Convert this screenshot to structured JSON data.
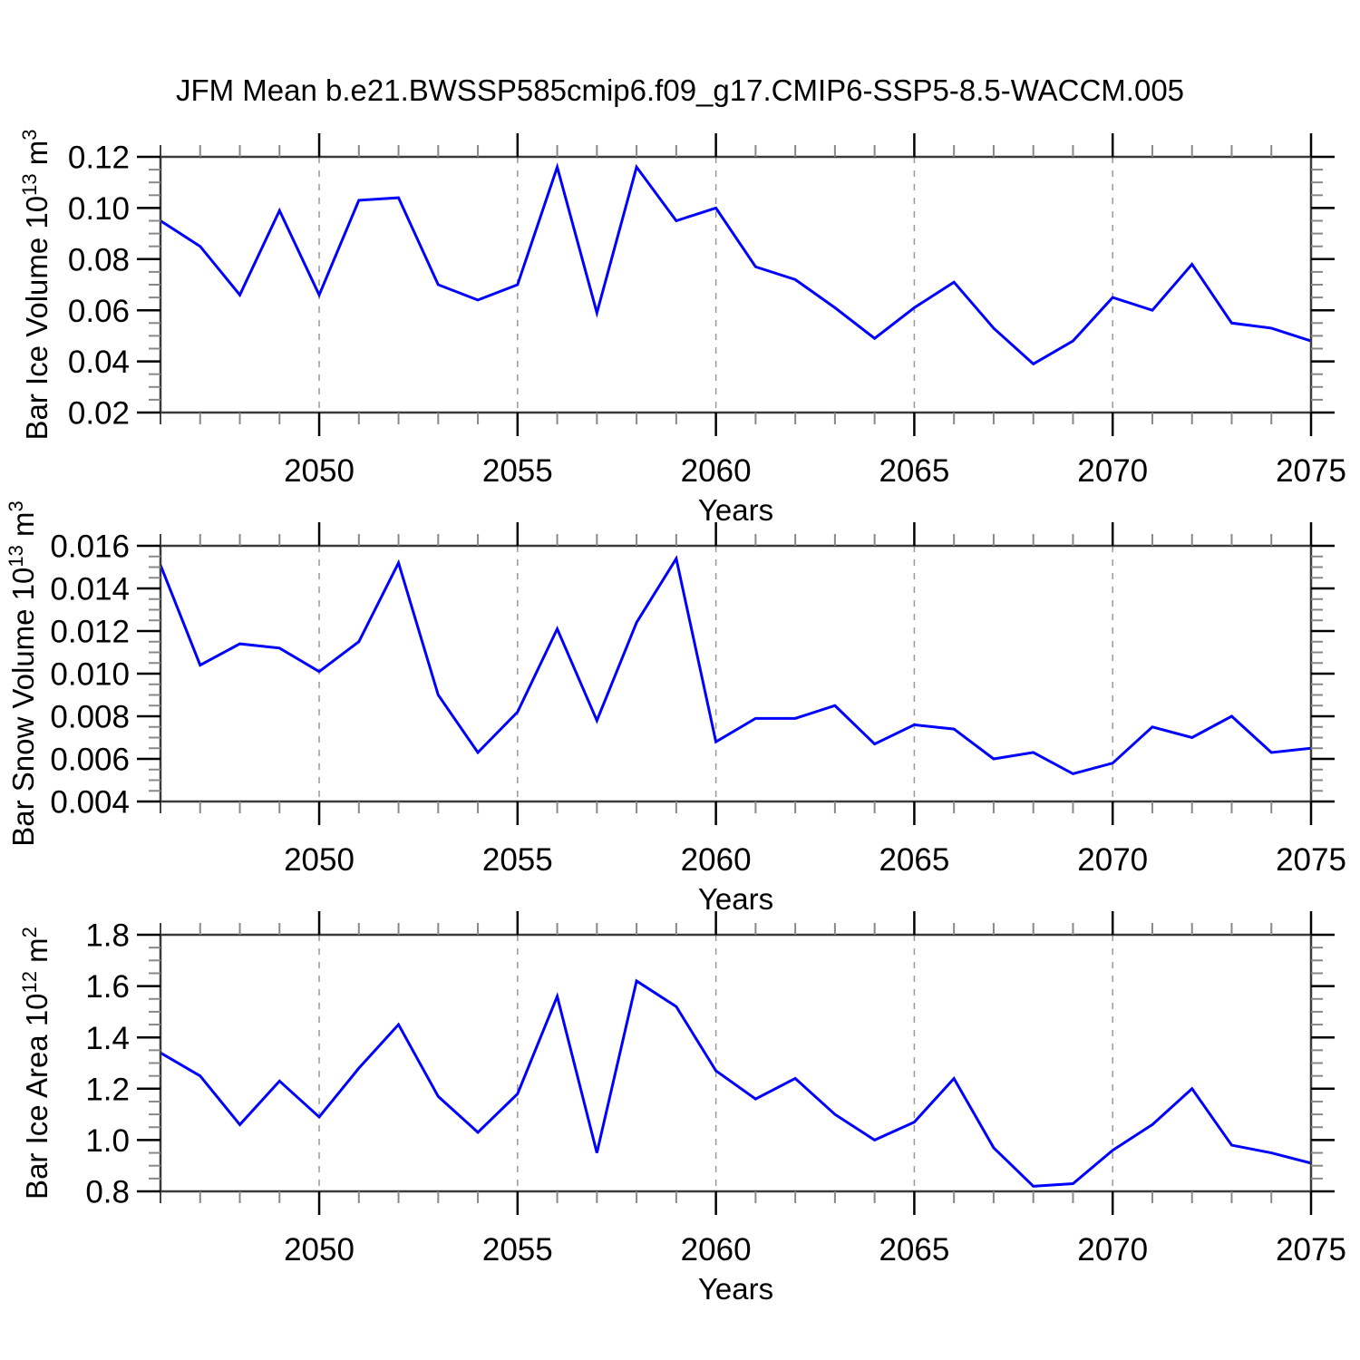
{
  "title": "JFM Mean b.e21.BWSSP585cmip6.f09_g17.CMIP6-SSP5-8.5-WACCM.005",
  "colors": {
    "line": "#0000ff",
    "axis": "#3a3a3a",
    "major_tick": "#000000",
    "minor_tick": "#888888",
    "edge_tick": "#444444",
    "grid": "#999999",
    "text": "#000000",
    "background": "#ffffff"
  },
  "chart_data": [
    {
      "type": "line",
      "panel": "bar-ice-volume",
      "ylabel": "Bar Ice Volume 10¹³ m³",
      "ylabel_parts": [
        {
          "text": "Bar Ice Volume 10",
          "superscript": false
        },
        {
          "text": "13",
          "superscript": true
        },
        {
          "text": " m",
          "superscript": false
        },
        {
          "text": "3",
          "superscript": true
        }
      ],
      "xlabel": "Years",
      "xlim": [
        2046,
        2075
      ],
      "x_tick_labels": [
        "2050",
        "2055",
        "2060",
        "2065",
        "2070",
        "2075"
      ],
      "grid_x": [
        2050,
        2055,
        2060,
        2065,
        2070
      ],
      "ylim": [
        0.02,
        0.12
      ],
      "ytick_step": 0.02,
      "yminor_step": 0.005,
      "ytick_decimals": 2,
      "x": [
        2046,
        2047,
        2048,
        2049,
        2050,
        2051,
        2052,
        2053,
        2054,
        2055,
        2056,
        2057,
        2058,
        2059,
        2060,
        2061,
        2062,
        2063,
        2064,
        2065,
        2066,
        2067,
        2068,
        2069,
        2070,
        2071,
        2072,
        2073,
        2074,
        2075
      ],
      "values": [
        0.095,
        0.085,
        0.066,
        0.099,
        0.066,
        0.103,
        0.104,
        0.07,
        0.064,
        0.07,
        0.116,
        0.059,
        0.116,
        0.095,
        0.1,
        0.077,
        0.072,
        0.061,
        0.049,
        0.061,
        0.071,
        0.053,
        0.039,
        0.048,
        0.065,
        0.06,
        0.078,
        0.055,
        0.053,
        0.048
      ]
    },
    {
      "type": "line",
      "panel": "bar-snow-volume",
      "ylabel": "Bar Snow Volume 10¹³ m³",
      "ylabel_parts": [
        {
          "text": "Bar Snow Volume 10",
          "superscript": false
        },
        {
          "text": "13",
          "superscript": true
        },
        {
          "text": " m",
          "superscript": false
        },
        {
          "text": "3",
          "superscript": true
        }
      ],
      "xlabel": "Years",
      "xlim": [
        2046,
        2075
      ],
      "x_tick_labels": [
        "2050",
        "2055",
        "2060",
        "2065",
        "2070",
        "2075"
      ],
      "grid_x": [
        2050,
        2055,
        2060,
        2065,
        2070
      ],
      "ylim": [
        0.004,
        0.016
      ],
      "ytick_step": 0.002,
      "yminor_step": 0.0005,
      "ytick_decimals": 3,
      "x": [
        2046,
        2047,
        2048,
        2049,
        2050,
        2051,
        2052,
        2053,
        2054,
        2055,
        2056,
        2057,
        2058,
        2059,
        2060,
        2061,
        2062,
        2063,
        2064,
        2065,
        2066,
        2067,
        2068,
        2069,
        2070,
        2071,
        2072,
        2073,
        2074,
        2075
      ],
      "values": [
        0.0151,
        0.0104,
        0.0114,
        0.0112,
        0.0101,
        0.0115,
        0.0152,
        0.009,
        0.0063,
        0.0082,
        0.0121,
        0.0078,
        0.0124,
        0.0154,
        0.0068,
        0.0079,
        0.0079,
        0.0085,
        0.0067,
        0.0076,
        0.0074,
        0.006,
        0.0063,
        0.0053,
        0.0058,
        0.0075,
        0.007,
        0.008,
        0.0063,
        0.0065
      ]
    },
    {
      "type": "line",
      "panel": "bar-ice-area",
      "ylabel": "Bar Ice Area 10¹² m²",
      "ylabel_parts": [
        {
          "text": "Bar Ice Area 10",
          "superscript": false
        },
        {
          "text": "12",
          "superscript": true
        },
        {
          "text": " m",
          "superscript": false
        },
        {
          "text": "2",
          "superscript": true
        }
      ],
      "xlabel": "Years",
      "xlim": [
        2046,
        2075
      ],
      "x_tick_labels": [
        "2050",
        "2055",
        "2060",
        "2065",
        "2070",
        "2075"
      ],
      "grid_x": [
        2050,
        2055,
        2060,
        2065,
        2070
      ],
      "ylim": [
        0.8,
        1.8
      ],
      "ytick_step": 0.2,
      "yminor_step": 0.05,
      "ytick_decimals": 1,
      "x": [
        2046,
        2047,
        2048,
        2049,
        2050,
        2051,
        2052,
        2053,
        2054,
        2055,
        2056,
        2057,
        2058,
        2059,
        2060,
        2061,
        2062,
        2063,
        2064,
        2065,
        2066,
        2067,
        2068,
        2069,
        2070,
        2071,
        2072,
        2073,
        2074,
        2075
      ],
      "values": [
        1.34,
        1.25,
        1.06,
        1.23,
        1.09,
        1.28,
        1.45,
        1.17,
        1.03,
        1.18,
        1.56,
        0.95,
        1.62,
        1.52,
        1.27,
        1.16,
        1.24,
        1.1,
        1.0,
        1.07,
        1.24,
        0.97,
        0.82,
        0.83,
        0.96,
        1.06,
        1.2,
        0.98,
        0.95,
        0.91
      ]
    }
  ]
}
